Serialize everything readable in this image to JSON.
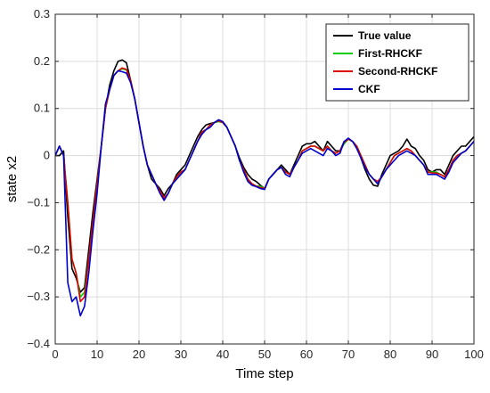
{
  "chart_data": {
    "type": "line",
    "title": "",
    "xlabel": "Time step",
    "ylabel": "state x2",
    "xlim": [
      0,
      100
    ],
    "ylim": [
      -0.4,
      0.3
    ],
    "xticks": [
      0,
      10,
      20,
      30,
      40,
      50,
      60,
      70,
      80,
      90,
      100
    ],
    "yticks": [
      -0.4,
      -0.3,
      -0.2,
      -0.1,
      0,
      0.1,
      0.2,
      0.3
    ],
    "ytick_labels": [
      "−0.4",
      "−0.3",
      "−0.2",
      "−0.1",
      "0",
      "0.1",
      "0.2",
      "0.3"
    ],
    "grid": true,
    "legend_position": "top-right",
    "x": [
      0,
      1,
      2,
      3,
      4,
      5,
      6,
      7,
      8,
      9,
      10,
      11,
      12,
      13,
      14,
      15,
      16,
      17,
      18,
      19,
      20,
      21,
      22,
      23,
      24,
      25,
      26,
      27,
      28,
      29,
      30,
      31,
      32,
      33,
      34,
      35,
      36,
      37,
      38,
      39,
      40,
      41,
      42,
      43,
      44,
      45,
      46,
      47,
      48,
      49,
      50,
      51,
      52,
      53,
      54,
      55,
      56,
      57,
      58,
      59,
      60,
      61,
      62,
      63,
      64,
      65,
      66,
      67,
      68,
      69,
      70,
      71,
      72,
      73,
      74,
      75,
      76,
      77,
      78,
      79,
      80,
      81,
      82,
      83,
      84,
      85,
      86,
      87,
      88,
      89,
      90,
      91,
      92,
      93,
      94,
      95,
      96,
      97,
      98,
      99,
      100
    ],
    "series": [
      {
        "name": "True value",
        "color": "#000000",
        "values": [
          0,
          0,
          0.01,
          -0.13,
          -0.24,
          -0.26,
          -0.29,
          -0.28,
          -0.2,
          -0.12,
          -0.05,
          0.02,
          0.1,
          0.15,
          0.18,
          0.2,
          0.203,
          0.197,
          0.16,
          0.12,
          0.07,
          0.02,
          -0.02,
          -0.05,
          -0.06,
          -0.07,
          -0.085,
          -0.07,
          -0.06,
          -0.04,
          -0.03,
          -0.02,
          0,
          0.02,
          0.04,
          0.055,
          0.065,
          0.068,
          0.07,
          0.075,
          0.072,
          0.06,
          0.04,
          0.02,
          -0.005,
          -0.025,
          -0.04,
          -0.05,
          -0.055,
          -0.063,
          -0.07,
          -0.05,
          -0.04,
          -0.03,
          -0.02,
          -0.03,
          -0.04,
          -0.02,
          0,
          0.02,
          0.025,
          0.025,
          0.03,
          0.02,
          0.01,
          0.03,
          0.02,
          0.01,
          0.01,
          0.03,
          0.035,
          0.03,
          0.02,
          -0.005,
          -0.03,
          -0.05,
          -0.063,
          -0.065,
          -0.04,
          -0.02,
          0,
          0.005,
          0.01,
          0.02,
          0.035,
          0.02,
          0.015,
          0,
          -0.01,
          -0.03,
          -0.035,
          -0.03,
          -0.03,
          -0.04,
          -0.02,
          0,
          0.01,
          0.02,
          0.02,
          0.03,
          0.04
        ]
      },
      {
        "name": "First-RHCKF",
        "color": "#00cc00",
        "values": [
          0,
          0.02,
          0,
          -0.1,
          -0.22,
          -0.25,
          -0.3,
          -0.29,
          -0.22,
          -0.14,
          -0.06,
          0.02,
          0.1,
          0.14,
          0.17,
          0.18,
          0.184,
          0.182,
          0.16,
          0.12,
          0.07,
          0.02,
          -0.02,
          -0.04,
          -0.06,
          -0.075,
          -0.09,
          -0.08,
          -0.06,
          -0.045,
          -0.035,
          -0.03,
          -0.01,
          0.01,
          0.03,
          0.05,
          0.055,
          0.065,
          0.07,
          0.072,
          0.07,
          0.06,
          0.04,
          0.02,
          -0.01,
          -0.03,
          -0.05,
          -0.06,
          -0.065,
          -0.065,
          -0.07,
          -0.05,
          -0.04,
          -0.03,
          -0.025,
          -0.035,
          -0.04,
          -0.025,
          -0.01,
          0.01,
          0.015,
          0.02,
          0.02,
          0.015,
          0.01,
          0.02,
          0.01,
          0.005,
          0.01,
          0.025,
          0.035,
          0.03,
          0.02,
          0,
          -0.02,
          -0.04,
          -0.05,
          -0.055,
          -0.045,
          -0.03,
          -0.015,
          0,
          0.005,
          0.01,
          0.015,
          0.01,
          0,
          -0.01,
          -0.02,
          -0.035,
          -0.035,
          -0.035,
          -0.04,
          -0.045,
          -0.03,
          -0.01,
          0,
          0.005,
          0.01,
          0.02,
          0.03
        ]
      },
      {
        "name": "Second-RHCKF",
        "color": "#dd0000",
        "values": [
          0,
          0.02,
          0,
          -0.1,
          -0.22,
          -0.25,
          -0.31,
          -0.3,
          -0.22,
          -0.14,
          -0.06,
          0.02,
          0.1,
          0.14,
          0.17,
          0.18,
          0.186,
          0.183,
          0.16,
          0.12,
          0.07,
          0.02,
          -0.02,
          -0.04,
          -0.06,
          -0.075,
          -0.09,
          -0.08,
          -0.06,
          -0.045,
          -0.035,
          -0.03,
          -0.01,
          0.01,
          0.03,
          0.05,
          0.055,
          0.065,
          0.07,
          0.074,
          0.07,
          0.06,
          0.04,
          0.02,
          -0.01,
          -0.03,
          -0.05,
          -0.06,
          -0.065,
          -0.068,
          -0.07,
          -0.05,
          -0.04,
          -0.03,
          -0.025,
          -0.035,
          -0.04,
          -0.025,
          -0.01,
          0.01,
          0.015,
          0.02,
          0.02,
          0.015,
          0.01,
          0.02,
          0.01,
          0.005,
          0.01,
          0.028,
          0.035,
          0.03,
          0.02,
          0,
          -0.02,
          -0.04,
          -0.05,
          -0.055,
          -0.045,
          -0.03,
          -0.015,
          0,
          0.005,
          0.01,
          0.015,
          0.01,
          0,
          -0.01,
          -0.02,
          -0.035,
          -0.037,
          -0.037,
          -0.04,
          -0.045,
          -0.03,
          -0.01,
          0,
          0.005,
          0.01,
          0.02,
          0.03
        ]
      },
      {
        "name": "CKF",
        "color": "#0000cc",
        "values": [
          0,
          0.02,
          0,
          -0.27,
          -0.31,
          -0.3,
          -0.34,
          -0.32,
          -0.25,
          -0.16,
          -0.08,
          0.02,
          0.11,
          0.14,
          0.17,
          0.18,
          0.178,
          0.175,
          0.155,
          0.12,
          0.07,
          0.02,
          -0.02,
          -0.04,
          -0.06,
          -0.08,
          -0.095,
          -0.08,
          -0.06,
          -0.05,
          -0.04,
          -0.03,
          -0.01,
          0.01,
          0.03,
          0.045,
          0.055,
          0.06,
          0.07,
          0.076,
          0.072,
          0.06,
          0.04,
          0.02,
          -0.01,
          -0.035,
          -0.055,
          -0.063,
          -0.066,
          -0.07,
          -0.072,
          -0.05,
          -0.04,
          -0.03,
          -0.025,
          -0.04,
          -0.045,
          -0.025,
          -0.01,
          0.005,
          0.01,
          0.015,
          0.01,
          0.005,
          0,
          0.015,
          0.01,
          0,
          0.005,
          0.03,
          0.037,
          0.03,
          0.015,
          -0.005,
          -0.025,
          -0.04,
          -0.05,
          -0.06,
          -0.045,
          -0.03,
          -0.02,
          -0.01,
          0,
          0.005,
          0.01,
          0.005,
          0,
          -0.01,
          -0.02,
          -0.04,
          -0.04,
          -0.04,
          -0.045,
          -0.05,
          -0.035,
          -0.015,
          -0.005,
          0.005,
          0.01,
          0.02,
          0.03
        ]
      }
    ]
  }
}
